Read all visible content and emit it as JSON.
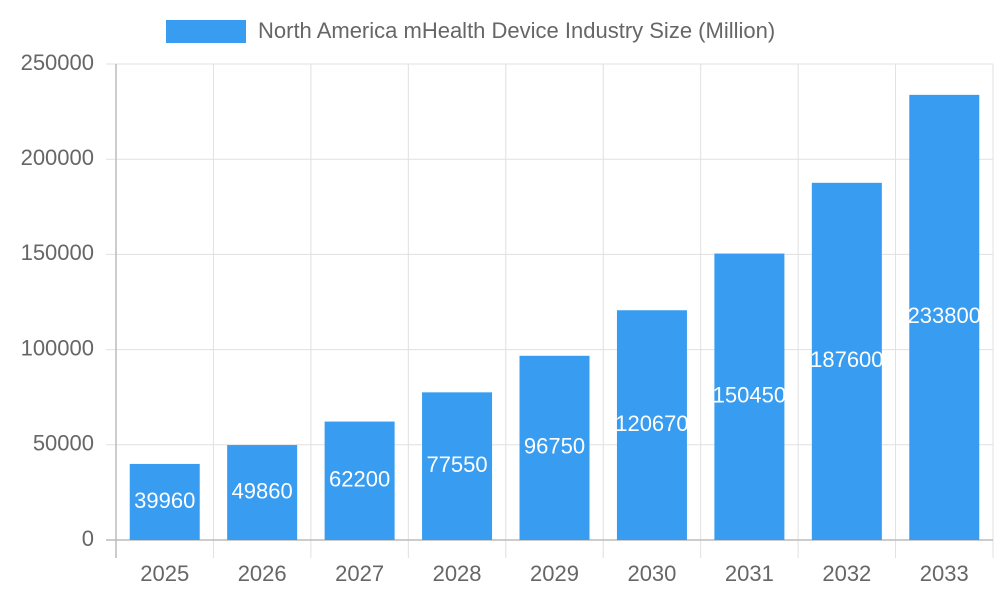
{
  "chart_data": {
    "type": "bar",
    "categories": [
      "2025",
      "2026",
      "2027",
      "2028",
      "2029",
      "2030",
      "2031",
      "2032",
      "2033"
    ],
    "series": [
      {
        "name": "North America mHealth Device Industry Size (Million)",
        "color": "#389cf0",
        "values": [
          39960,
          49860,
          62200,
          77550,
          96750,
          120670,
          150450,
          187600,
          233800
        ]
      }
    ],
    "ylim": [
      0,
      250000
    ],
    "yticks": [
      0,
      50000,
      100000,
      150000,
      200000,
      250000
    ],
    "grid": true,
    "legend": "top"
  }
}
